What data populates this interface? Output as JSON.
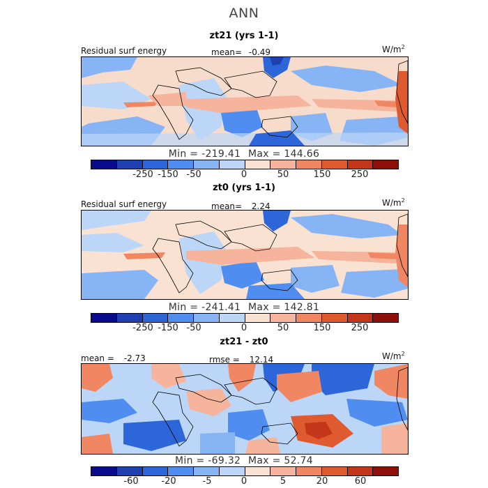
{
  "header": {
    "title": "ANN"
  },
  "colors": {
    "scale": [
      "#0a0a8c",
      "#1f3fb0",
      "#2d66d8",
      "#4f8ef0",
      "#86b4f5",
      "#bcd6f8",
      "#f9e2d2",
      "#f6b49c",
      "#f08662",
      "#e05a30",
      "#c3361a",
      "#8e0f0a"
    ]
  },
  "panels": [
    {
      "title": "zt21 (yrs 1-1)",
      "left_label": "Residual surf energy",
      "stat_label": "mean=",
      "stat_value": "-0.49",
      "units": "W/m",
      "units_exp": "2",
      "min_label": "Min =",
      "min_value": "-219.41",
      "max_label": "Max =",
      "max_value": "144.66",
      "ticks": [
        "-250",
        "-150",
        "-50",
        "0",
        "50",
        "150",
        "250"
      ]
    },
    {
      "title": "zt0 (yrs 1-1)",
      "left_label": "Residual surf energy",
      "stat_label": "mean=",
      "stat_value": "2.24",
      "units": "W/m",
      "units_exp": "2",
      "min_label": "Min =",
      "min_value": "-241.41",
      "max_label": "Max =",
      "max_value": "142.81",
      "ticks": [
        "-250",
        "-150",
        "-50",
        "0",
        "50",
        "150",
        "250"
      ]
    },
    {
      "title": "zt21 - zt0",
      "left_label": "mean =",
      "left_value": "-2.73",
      "stat_label": "rmse =",
      "stat_value": "12.14",
      "units": "W/m",
      "units_exp": "2",
      "min_label": "Min =",
      "min_value": "-69.32",
      "max_label": "Max =",
      "max_value": "52.74",
      "ticks": [
        "-60",
        "-20",
        "-5",
        "0",
        "5",
        "20",
        "60"
      ]
    }
  ]
}
